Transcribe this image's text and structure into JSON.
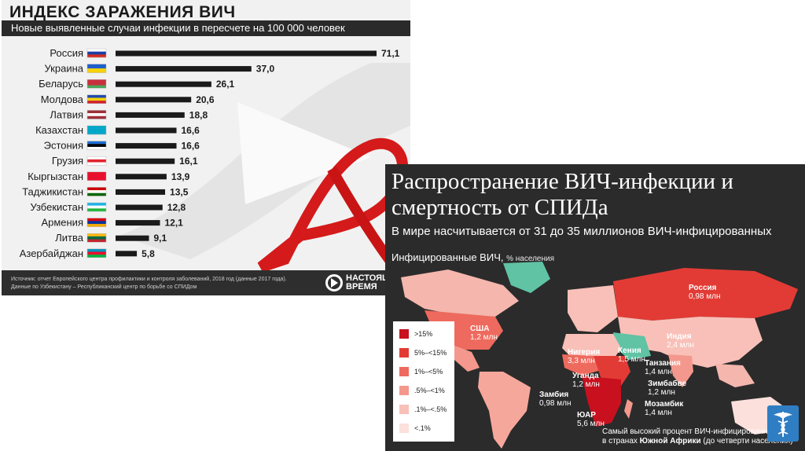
{
  "chart_data": [
    {
      "type": "bar",
      "title": "ИНДЕКС ЗАРАЖЕНИЯ ВИЧ",
      "subtitle": "Новые выявленные случаи инфекции в пересчете на 100 000 человек",
      "categories": [
        "Россия",
        "Украина",
        "Беларусь",
        "Молдова",
        "Латвия",
        "Казахстан",
        "Эстония",
        "Грузия",
        "Кыргызстан",
        "Таджикистан",
        "Узбекистан",
        "Армения",
        "Литва",
        "Азербайджан"
      ],
      "values": [
        71.1,
        37.0,
        26.1,
        20.6,
        18.8,
        16.6,
        16.6,
        16.1,
        13.9,
        13.5,
        12.8,
        12.1,
        9.1,
        5.8
      ],
      "value_labels": [
        "71,1",
        "37,0",
        "26,1",
        "20,6",
        "18,8",
        "16,6",
        "16,6",
        "16,1",
        "13,9",
        "13,5",
        "12,8",
        "12,1",
        "9,1",
        "5,8"
      ],
      "orientation": "horizontal",
      "bar_color": "#1a1a1a",
      "source": "Источник: отчет Европейского центра профилактики и контроля заболеваний, 2018 год (данные 2017 года).\nДанные по Узбекистану – Республиканский центр по борьбе со СПИДом",
      "logo": [
        "НАСТОЯЩЕЕ",
        "ВРЕМЯ"
      ]
    },
    {
      "type": "choropleth-map",
      "title": "Распространение ВИЧ-инфекции и смертность от СПИДа",
      "subtitle": "В мире насчитывается от 31 до 35 миллионов ВИЧ-инфицированных",
      "map_label": "Инфицированные ВИЧ,",
      "map_label_unit": "% населения",
      "legend": [
        {
          "label": ">15%",
          "color": "#c8101e"
        },
        {
          "label": "5%–<15%",
          "color": "#e23b35"
        },
        {
          "label": "1%–<5%",
          "color": "#ee6a5e"
        },
        {
          "label": ".5%–<1%",
          "color": "#f4988d"
        },
        {
          "label": ".1%–<.5%",
          "color": "#f8c0b8"
        },
        {
          "label": "<.1%",
          "color": "#fbe0dc"
        }
      ],
      "annotations": [
        {
          "name": "Россия",
          "value": "0,98 млн"
        },
        {
          "name": "США",
          "value": "1,2 млн"
        },
        {
          "name": "Индия",
          "value": "2,4 млн"
        },
        {
          "name": "Нигерия",
          "value": "3,3 млн"
        },
        {
          "name": "Кения",
          "value": "1,5 млн"
        },
        {
          "name": "Танзания",
          "value": "1,4 млн"
        },
        {
          "name": "Уганда",
          "value": "1,2 млн"
        },
        {
          "name": "Зимбабве",
          "value": "1,2 млн"
        },
        {
          "name": "Замбия",
          "value": "0,98 млн"
        },
        {
          "name": "Мозамбик",
          "value": "1,4 млн"
        },
        {
          "name": "ЮАР",
          "value": "5,6 млн"
        }
      ],
      "note_prefix": "Самый высокий процент ВИЧ-инфицированных",
      "note_line2_a": "в странах ",
      "note_line2_b": "Южной Африки",
      "note_line2_c": " (до четверти населения)",
      "colors": {
        "land_no_data": "#5fc3a4",
        "background": "#2b2b2b"
      }
    }
  ]
}
